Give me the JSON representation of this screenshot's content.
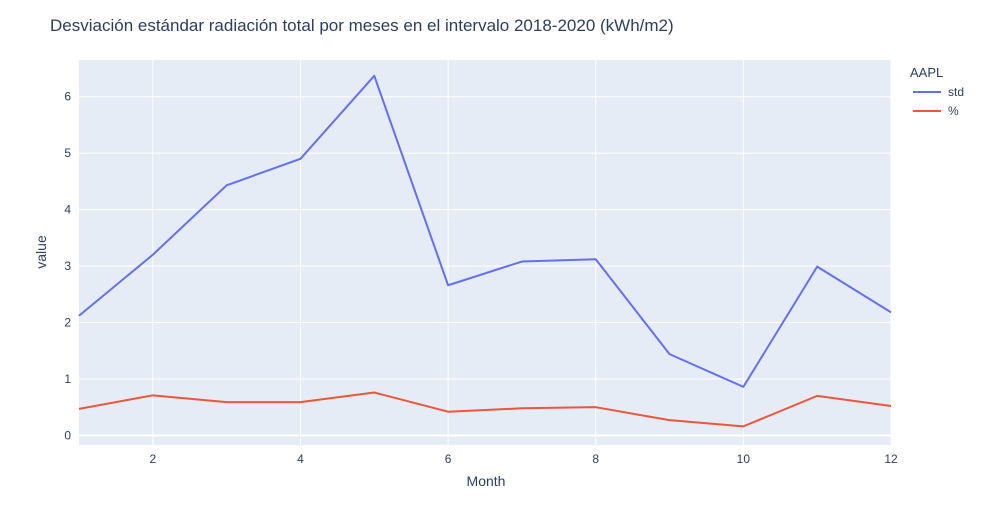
{
  "chart_data": {
    "type": "line",
    "title": "Desviación estándar radiación total por meses en el intervalo 2018-2020 (kWh/m2)",
    "xlabel": "Month",
    "ylabel": "value",
    "x": [
      1,
      2,
      3,
      4,
      5,
      6,
      7,
      8,
      9,
      10,
      11,
      12
    ],
    "xlim": [
      1,
      12
    ],
    "ylim": [
      -0.17,
      6.65
    ],
    "xticks": [
      2,
      4,
      6,
      8,
      10,
      12
    ],
    "yticks": [
      0,
      1,
      2,
      3,
      4,
      5,
      6
    ],
    "grid": true,
    "legend": {
      "title": "AAPL",
      "position": "top-right"
    },
    "series": [
      {
        "name": "std",
        "color": "#636efa",
        "values": [
          2.12,
          3.2,
          4.43,
          4.9,
          6.37,
          2.66,
          3.08,
          3.12,
          1.44,
          0.86,
          2.99,
          2.18
        ]
      },
      {
        "name": "%",
        "color": "#ef553b",
        "values": [
          0.47,
          0.71,
          0.59,
          0.59,
          0.76,
          0.42,
          0.48,
          0.5,
          0.27,
          0.16,
          0.7,
          0.52
        ]
      }
    ],
    "colors": {
      "plot_bg": "#e5ecf6",
      "grid": "#ffffff",
      "text": "#2a3f5f"
    }
  }
}
